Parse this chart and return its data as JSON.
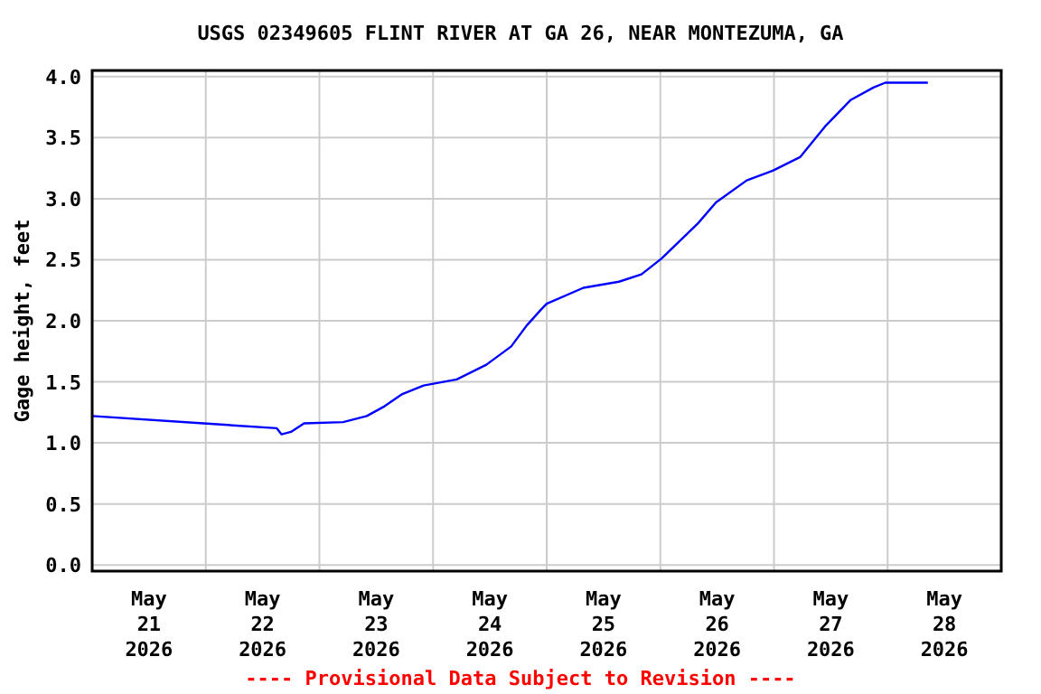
{
  "chart_data": {
    "type": "line",
    "title": "USGS 02349605 FLINT RIVER AT GA 26, NEAR MONTEZUMA, GA",
    "ylabel": "Gage height, feet",
    "annotations": [
      "---- Provisional Data Subject to Revision ----"
    ],
    "x": [
      "2026-05-21T00:00",
      "2026-05-21T23:30",
      "2026-05-22T15:00",
      "2026-05-22T16:00",
      "2026-05-22T18:00",
      "2026-05-22T20:45",
      "2026-05-23T05:00",
      "2026-05-23T10:00",
      "2026-05-23T13:45",
      "2026-05-23T17:30",
      "2026-05-23T22:00",
      "2026-05-24T05:00",
      "2026-05-24T11:15",
      "2026-05-24T16:30",
      "2026-05-24T19:45",
      "2026-05-24T22:45",
      "2026-05-25T00:00",
      "2026-05-25T07:45",
      "2026-05-25T15:15",
      "2026-05-25T20:00",
      "2026-05-26T00:15",
      "2026-05-26T08:00",
      "2026-05-26T11:45",
      "2026-05-26T18:15",
      "2026-05-26T23:45",
      "2026-05-27T05:30",
      "2026-05-27T10:45",
      "2026-05-27T16:15",
      "2026-05-27T21:00",
      "2026-05-27T23:30",
      "2026-05-28T08:30"
    ],
    "series": [
      {
        "color": "#0000ff",
        "values": [
          1.22,
          1.16,
          1.12,
          1.07,
          1.09,
          1.16,
          1.17,
          1.22,
          1.3,
          1.4,
          1.47,
          1.52,
          1.64,
          1.79,
          1.96,
          2.09,
          2.14,
          2.27,
          2.32,
          2.38,
          2.51,
          2.8,
          2.97,
          3.15,
          3.23,
          3.34,
          3.59,
          3.81,
          3.91,
          3.95,
          3.95
        ]
      }
    ],
    "xlim": [
      "2026-05-21T00:00",
      "2026-05-29T00:00"
    ],
    "xticks": [
      {
        "value": "2026-05-21T12:00",
        "label": "May\n21\n2026"
      },
      {
        "value": "2026-05-22T00:00",
        "label": null
      },
      {
        "value": "2026-05-22T12:00",
        "label": "May\n22\n2026"
      },
      {
        "value": "2026-05-23T00:00",
        "label": null
      },
      {
        "value": "2026-05-23T12:00",
        "label": "May\n23\n2026"
      },
      {
        "value": "2026-05-24T00:00",
        "label": null
      },
      {
        "value": "2026-05-24T12:00",
        "label": "May\n24\n2026"
      },
      {
        "value": "2026-05-25T00:00",
        "label": null
      },
      {
        "value": "2026-05-25T12:00",
        "label": "May\n25\n2026"
      },
      {
        "value": "2026-05-26T00:00",
        "label": null
      },
      {
        "value": "2026-05-26T12:00",
        "label": "May\n26\n2026"
      },
      {
        "value": "2026-05-27T00:00",
        "label": null
      },
      {
        "value": "2026-05-27T12:00",
        "label": "May\n27\n2026"
      },
      {
        "value": "2026-05-28T00:00",
        "label": null
      },
      {
        "value": "2026-05-28T12:00",
        "label": "May\n28\n2026"
      }
    ],
    "ylim": [
      -0.05,
      4.05
    ],
    "yticks": [
      {
        "value": 0,
        "label": "0.0"
      },
      {
        "value": 0.5,
        "label": "0.5"
      },
      {
        "value": 1,
        "label": "1.0"
      },
      {
        "value": 1.5,
        "label": "1.5"
      },
      {
        "value": 2,
        "label": "2.0"
      },
      {
        "value": 2.5,
        "label": "2.5"
      },
      {
        "value": 3,
        "label": "3.0"
      },
      {
        "value": 3.5,
        "label": "3.5"
      },
      {
        "value": 4,
        "label": "4.0"
      }
    ],
    "grid": true,
    "marker": "none",
    "line_style": "solid"
  }
}
